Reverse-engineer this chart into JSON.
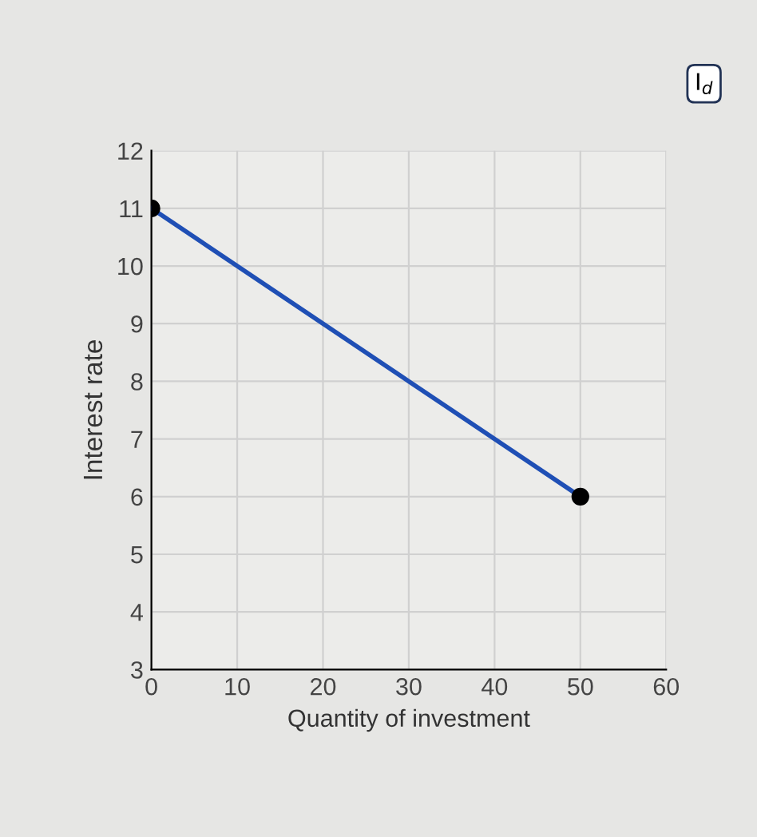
{
  "chart_data": {
    "type": "line",
    "xlabel": "Quantity of investment",
    "ylabel": "Interest rate",
    "x": [
      0,
      50
    ],
    "series": [
      {
        "color": "#1f4fb5",
        "values": [
          11,
          6
        ]
      }
    ],
    "xlim": [
      0,
      60
    ],
    "xticks": [
      0,
      10,
      20,
      30,
      40,
      50,
      60
    ],
    "ylim": [
      3,
      12
    ],
    "yticks": [
      3,
      4,
      5,
      6,
      7,
      8,
      9,
      10,
      11,
      12
    ],
    "grid": true,
    "marker": "circle",
    "line_style": "solid",
    "annotations": [
      "I$_{d}$"
    ]
  }
}
